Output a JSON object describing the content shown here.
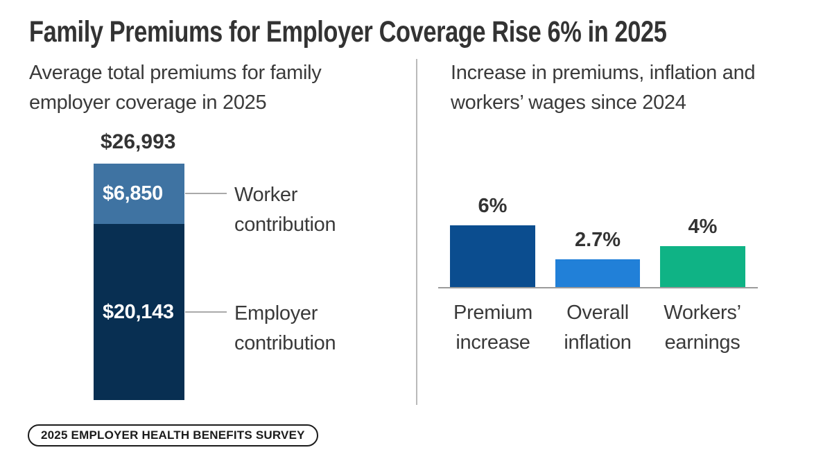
{
  "header": {
    "title": "Family Premiums for Employer Coverage Rise 6% in 2025"
  },
  "footer": {
    "badge": "2025 EMPLOYER HEALTH BENEFITS SURVEY"
  },
  "colors": {
    "title_text": "#333333",
    "body_text": "#3a3a3a",
    "worker_segment_blue": "#3f73a2",
    "employer_segment_navy": "#082f52",
    "premium_increase_blue": "#0b4d8f",
    "overall_inflation_blue": "#2180d8",
    "workers_earnings_green": "#0fb385",
    "divider_gray": "#b9b9b9",
    "axis_gray": "#9b9b9b",
    "background": "#ffffff"
  },
  "chart_data": [
    {
      "type": "bar",
      "variant": "single-stacked-column",
      "title": "Average total premiums for family employer coverage in 2025",
      "total": {
        "label": "$26,993",
        "value": 26993
      },
      "segments": [
        {
          "category": "Worker contribution",
          "label": "$6,850",
          "value": 6850,
          "color": "#3f73a2"
        },
        {
          "category": "Employer contribution",
          "label": "$20,143",
          "value": 20143,
          "color": "#082f52"
        }
      ],
      "ylim": [
        0,
        26993
      ],
      "grid": false,
      "legend": "callout-lines-right"
    },
    {
      "type": "bar",
      "title": "Increase in premiums, inflation and workers’ wages since 2024",
      "categories": [
        "Premium increase",
        "Overall inflation",
        "Workers’ earnings"
      ],
      "values": [
        6,
        2.7,
        4
      ],
      "value_labels": [
        "6%",
        "2.7%",
        "4%"
      ],
      "colors": [
        "#0b4d8f",
        "#2180d8",
        "#0fb385"
      ],
      "ylim": [
        0,
        7
      ],
      "grid": false,
      "legend": "none",
      "xlabel": "",
      "ylabel": ""
    }
  ]
}
